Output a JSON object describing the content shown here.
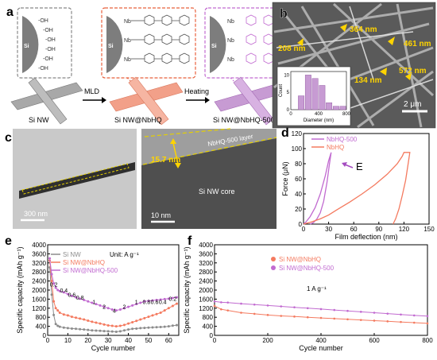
{
  "panel_labels": {
    "a": "a",
    "b": "b",
    "c": "c",
    "d": "d",
    "e": "e",
    "f": "f"
  },
  "panel_a": {
    "captions": [
      "Si NW",
      "Si NW@NbHQ",
      "Si NW@NbHQ-500"
    ],
    "arrow_labels": [
      "MLD",
      "Heating"
    ],
    "core_label": "Si",
    "oh_label": "-OH",
    "nb_label": "Nb",
    "colors": {
      "bare": "#a8a8a8",
      "nbhq": "#f2a089",
      "nbhq500": "#c79bd3",
      "box1": "#888888",
      "box2": "#e8603c",
      "box3": "#c16ad0"
    }
  },
  "panel_b": {
    "annotations": [
      "208 nm",
      "364 nm",
      "461 nm",
      "134 nm",
      "572 nm"
    ],
    "scale_bar": "2 μm",
    "inset": {
      "type": "bar",
      "xlabel": "Diameter (nm)",
      "ylabel": "Count",
      "x_ticks": [
        "0",
        "400",
        "800"
      ],
      "y_ticks": [
        "0",
        "5",
        "10"
      ],
      "xlim": [
        0,
        800
      ],
      "ylim": [
        0,
        11
      ],
      "bin_centers": [
        150,
        250,
        350,
        450,
        550,
        650,
        750
      ],
      "counts": [
        4,
        10,
        9,
        7,
        2,
        1,
        1
      ],
      "bar_color": "#c79bd3"
    }
  },
  "panel_c": {
    "left_scale": "300 nm",
    "right_scale": "10 nm",
    "layer_label": "NbHQ-500 layer",
    "thickness_label": "15.7 nm",
    "core_label": "Si NW core"
  },
  "chart_data": [
    {
      "panel": "d",
      "type": "line",
      "xlabel": "Film deflection (nm)",
      "ylabel": "Force (μN)",
      "xlim": [
        0,
        150
      ],
      "ylim": [
        0,
        120
      ],
      "x_ticks": [
        "0",
        "30",
        "60",
        "90",
        "120",
        "150"
      ],
      "y_ticks": [
        "0",
        "20",
        "40",
        "60",
        "80",
        "100",
        "120"
      ],
      "annotation": "E",
      "legend_position": "top-left",
      "series": [
        {
          "name": "NbHQ-500",
          "color": "#c16ad0",
          "x": [
            0,
            3,
            8,
            14,
            20,
            26,
            30,
            33,
            31,
            28,
            24,
            20,
            16,
            12,
            8
          ],
          "y": [
            0,
            3,
            10,
            22,
            40,
            64,
            84,
            95,
            80,
            55,
            30,
            15,
            7,
            2,
            0
          ]
        },
        {
          "name": "NbHQ",
          "color": "#f47a5f",
          "x": [
            0,
            10,
            20,
            30,
            40,
            55,
            70,
            85,
            100,
            112,
            118,
            120,
            127,
            125,
            122,
            118,
            114,
            110,
            107
          ],
          "y": [
            0,
            3,
            7,
            12,
            19,
            29,
            40,
            52,
            66,
            80,
            90,
            95,
            95,
            80,
            58,
            38,
            20,
            7,
            0
          ]
        }
      ]
    },
    {
      "panel": "e",
      "type": "line",
      "xlabel": "Cycle number",
      "ylabel": "Specific capacity (mAh g⁻¹)",
      "xlim": [
        0,
        65
      ],
      "ylim": [
        0,
        4000
      ],
      "x_ticks": [
        "0",
        "10",
        "20",
        "30",
        "40",
        "50",
        "60"
      ],
      "y_ticks": [
        "0",
        "400",
        "800",
        "1200",
        "1600",
        "2000",
        "2400",
        "2800",
        "3200",
        "3600",
        "4000"
      ],
      "unit_note": "Unit: A g⁻¹",
      "rate_labels": [
        {
          "text": "0.2",
          "x": 3,
          "y": 2150
        },
        {
          "text": "0.4",
          "x": 8,
          "y": 1900
        },
        {
          "text": "0.6",
          "x": 12,
          "y": 1700
        },
        {
          "text": "0.8",
          "x": 16,
          "y": 1580
        },
        {
          "text": "1",
          "x": 23,
          "y": 1380
        },
        {
          "text": "2",
          "x": 28,
          "y": 1180
        },
        {
          "text": "4",
          "x": 33,
          "y": 1000
        },
        {
          "text": "2",
          "x": 38,
          "y": 1180
        },
        {
          "text": "1",
          "x": 44,
          "y": 1380
        },
        {
          "text": "0.8",
          "x": 49,
          "y": 1380
        },
        {
          "text": "0.6",
          "x": 53,
          "y": 1380
        },
        {
          "text": "0.4",
          "x": 57,
          "y": 1380
        },
        {
          "text": "0.2",
          "x": 62,
          "y": 1520
        }
      ],
      "series": [
        {
          "name": "Si NW",
          "color": "#8c8c8c",
          "x": [
            1,
            2,
            3,
            4,
            5,
            6,
            8,
            10,
            12,
            14,
            16,
            18,
            20,
            22,
            24,
            26,
            28,
            30,
            32,
            34,
            36,
            38,
            40,
            42,
            44,
            46,
            48,
            50,
            52,
            54,
            56,
            58,
            60,
            62,
            64
          ],
          "y": [
            3000,
            1800,
            900,
            500,
            420,
            380,
            340,
            320,
            300,
            290,
            270,
            260,
            240,
            220,
            210,
            200,
            190,
            180,
            170,
            160,
            180,
            220,
            260,
            290,
            300,
            320,
            330,
            340,
            350,
            360,
            370,
            380,
            400,
            430,
            450
          ]
        },
        {
          "name": "Si NW@NbHQ",
          "color": "#f47a5f",
          "x": [
            1,
            2,
            3,
            4,
            5,
            6,
            8,
            10,
            12,
            14,
            16,
            18,
            20,
            22,
            24,
            26,
            28,
            30,
            32,
            34,
            36,
            38,
            40,
            42,
            44,
            46,
            48,
            50,
            52,
            54,
            56,
            58,
            60,
            62,
            64
          ],
          "y": [
            3300,
            2400,
            1500,
            1200,
            1100,
            1000,
            920,
            880,
            820,
            780,
            740,
            700,
            650,
            600,
            560,
            520,
            480,
            440,
            420,
            400,
            420,
            460,
            520,
            580,
            640,
            700,
            760,
            820,
            880,
            940,
            1000,
            1100,
            1200,
            1300,
            1400
          ]
        },
        {
          "name": "Si NW@NbHQ-500",
          "color": "#c16ad0",
          "x": [
            1,
            2,
            3,
            4,
            5,
            6,
            8,
            10,
            12,
            14,
            16,
            18,
            20,
            22,
            24,
            26,
            28,
            30,
            32,
            34,
            36,
            38,
            40,
            42,
            44,
            46,
            48,
            50,
            52,
            54,
            56,
            58,
            60,
            62,
            64
          ],
          "y": [
            3400,
            2700,
            2300,
            2100,
            2000,
            1950,
            1900,
            1820,
            1740,
            1680,
            1620,
            1560,
            1500,
            1440,
            1380,
            1320,
            1260,
            1200,
            1140,
            1100,
            1140,
            1200,
            1260,
            1320,
            1380,
            1440,
            1500,
            1520,
            1540,
            1560,
            1580,
            1600,
            1620,
            1650,
            1680
          ]
        }
      ]
    },
    {
      "panel": "f",
      "type": "line",
      "xlabel": "Cycle number",
      "ylabel": "Specific capacity (mAh g⁻¹)",
      "xlim": [
        0,
        800
      ],
      "ylim": [
        0,
        4000
      ],
      "x_ticks": [
        "0",
        "200",
        "400",
        "600",
        "800"
      ],
      "y_ticks": [
        "0",
        "400",
        "800",
        "1200",
        "1600",
        "2000",
        "2400",
        "2800",
        "3200",
        "3600",
        "4000"
      ],
      "rate_note": "1 A g⁻¹",
      "series": [
        {
          "name": "Si NW@NbHQ",
          "color": "#f47a5f",
          "x": [
            0,
            25,
            50,
            100,
            150,
            200,
            250,
            300,
            350,
            400,
            450,
            500,
            550,
            600,
            650,
            700,
            750,
            800
          ],
          "y": [
            1300,
            1150,
            1100,
            1000,
            950,
            900,
            860,
            830,
            800,
            770,
            740,
            710,
            680,
            650,
            620,
            590,
            560,
            530
          ]
        },
        {
          "name": "Si NW@NbHQ-500",
          "color": "#c16ad0",
          "x": [
            0,
            25,
            50,
            100,
            150,
            200,
            250,
            300,
            350,
            400,
            450,
            500,
            550,
            600,
            650,
            700,
            750,
            800
          ],
          "y": [
            1500,
            1460,
            1450,
            1400,
            1360,
            1320,
            1280,
            1240,
            1200,
            1160,
            1120,
            1080,
            1040,
            1000,
            960,
            920,
            880,
            850
          ]
        }
      ]
    }
  ]
}
